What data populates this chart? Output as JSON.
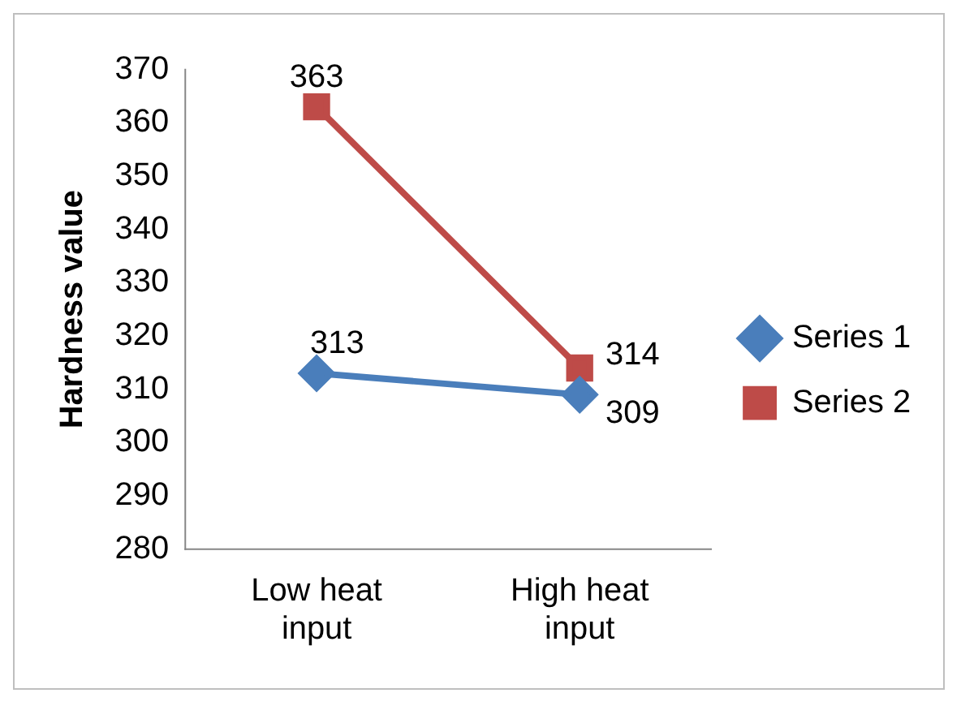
{
  "chart_data": {
    "type": "line",
    "ylabel": "Hardness value",
    "categories": [
      "Low heat input",
      "High heat input"
    ],
    "series": [
      {
        "name": "Series 1",
        "color": "#4a7ebb",
        "values": [
          313,
          309
        ],
        "marker": "diamond"
      },
      {
        "name": "Series 2",
        "color": "#be4b48",
        "values": [
          363,
          314
        ],
        "marker": "square"
      }
    ],
    "ylim": [
      280,
      370
    ],
    "yticks": [
      280,
      290,
      300,
      310,
      320,
      330,
      340,
      350,
      360,
      370
    ],
    "grid": false,
    "legend": "right",
    "data_labels": true
  }
}
